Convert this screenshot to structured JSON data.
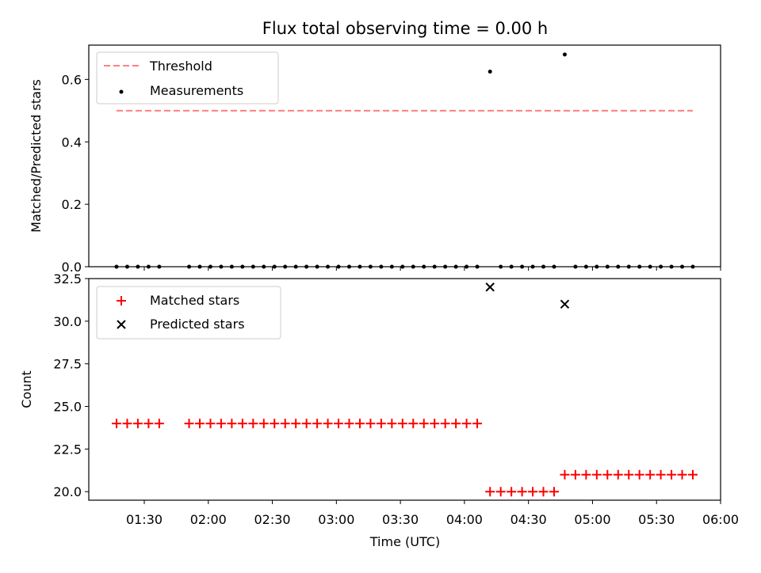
{
  "chart_data": [
    {
      "type": "scatter",
      "title": "Flux total observing time = 0.00 h",
      "ylabel": "Matched/Predicted stars",
      "ylim": [
        0,
        0.71
      ],
      "yticks": [
        "0.0",
        "0.2",
        "0.4",
        "0.6"
      ],
      "ytick_values": [
        0,
        0.2,
        0.4,
        0.6
      ],
      "legend_position": "top-left",
      "threshold": {
        "name": "Threshold",
        "value": 0.5,
        "x_start": "01:17",
        "x_end": "05:47",
        "color": "#ff7f7f"
      },
      "measurements": {
        "name": "Measurements",
        "color": "#000000",
        "x": [
          "01:17",
          "01:22",
          "01:27",
          "01:32",
          "01:37",
          "01:51",
          "01:56",
          "02:01",
          "02:06",
          "02:11",
          "02:16",
          "02:21",
          "02:26",
          "02:31",
          "02:36",
          "02:41",
          "02:46",
          "02:51",
          "02:56",
          "03:01",
          "03:06",
          "03:11",
          "03:16",
          "03:21",
          "03:26",
          "03:31",
          "03:36",
          "03:41",
          "03:46",
          "03:51",
          "03:56",
          "04:01",
          "04:06",
          "04:12",
          "04:17",
          "04:22",
          "04:27",
          "04:32",
          "04:37",
          "04:42",
          "04:47",
          "04:52",
          "04:57",
          "05:02",
          "05:07",
          "05:12",
          "05:17",
          "05:22",
          "05:27",
          "05:32",
          "05:37",
          "05:42",
          "05:47"
        ],
        "y": [
          0,
          0,
          0,
          0,
          0,
          0,
          0,
          0,
          0,
          0,
          0,
          0,
          0,
          0,
          0,
          0,
          0,
          0,
          0,
          0,
          0,
          0,
          0,
          0,
          0,
          0,
          0,
          0,
          0,
          0,
          0,
          0,
          0,
          0.625,
          0,
          0,
          0,
          0,
          0,
          0,
          0.68,
          0,
          0,
          0,
          0,
          0,
          0,
          0,
          0,
          0,
          0,
          0,
          0
        ]
      }
    },
    {
      "type": "scatter",
      "xlabel": "Time (UTC)",
      "ylabel": "Count",
      "ylim": [
        19.5,
        32.5
      ],
      "yticks": [
        "20.0",
        "22.5",
        "25.0",
        "27.5",
        "30.0",
        "32.5"
      ],
      "ytick_values": [
        20,
        22.5,
        25,
        27.5,
        30,
        32.5
      ],
      "legend_position": "top-left",
      "matched": {
        "name": "Matched stars",
        "color": "#ff0000",
        "x": [
          "01:17",
          "01:22",
          "01:27",
          "01:32",
          "01:37",
          "01:51",
          "01:56",
          "02:01",
          "02:06",
          "02:11",
          "02:16",
          "02:21",
          "02:26",
          "02:31",
          "02:36",
          "02:41",
          "02:46",
          "02:51",
          "02:56",
          "03:01",
          "03:06",
          "03:11",
          "03:16",
          "03:21",
          "03:26",
          "03:31",
          "03:36",
          "03:41",
          "03:46",
          "03:51",
          "03:56",
          "04:01",
          "04:06",
          "04:12",
          "04:17",
          "04:22",
          "04:27",
          "04:32",
          "04:37",
          "04:42",
          "04:47",
          "04:52",
          "04:57",
          "05:02",
          "05:07",
          "05:12",
          "05:17",
          "05:22",
          "05:27",
          "05:32",
          "05:37",
          "05:42",
          "05:47"
        ],
        "y": [
          24,
          24,
          24,
          24,
          24,
          24,
          24,
          24,
          24,
          24,
          24,
          24,
          24,
          24,
          24,
          24,
          24,
          24,
          24,
          24,
          24,
          24,
          24,
          24,
          24,
          24,
          24,
          24,
          24,
          24,
          24,
          24,
          24,
          20,
          20,
          20,
          20,
          20,
          20,
          20,
          21,
          21,
          21,
          21,
          21,
          21,
          21,
          21,
          21,
          21,
          21,
          21,
          21
        ]
      },
      "predicted": {
        "name": "Predicted stars",
        "color": "#000000",
        "x": [
          "04:12",
          "04:47"
        ],
        "y": [
          32,
          31
        ]
      }
    }
  ],
  "x_axis": {
    "ticks": [
      "01:30",
      "02:00",
      "02:30",
      "03:00",
      "03:30",
      "04:00",
      "04:30",
      "05:00",
      "05:30",
      "06:00"
    ],
    "range": [
      "01:04",
      "06:00"
    ]
  }
}
